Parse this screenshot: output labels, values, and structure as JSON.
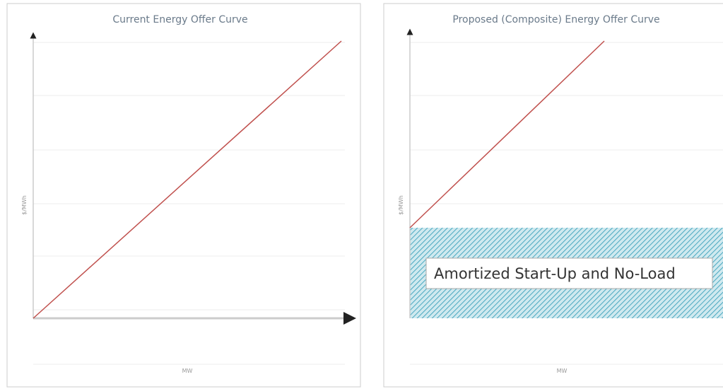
{
  "panels": [
    {
      "title": "Current Energy Offer Curve",
      "y_label": "$/MWh",
      "x_label": "MW"
    },
    {
      "title": "Proposed (Composite) Energy Offer Curve",
      "y_label": "$/MWh",
      "x_label": "MW",
      "region_label": "Amortized Start-Up and No-Load"
    }
  ]
}
